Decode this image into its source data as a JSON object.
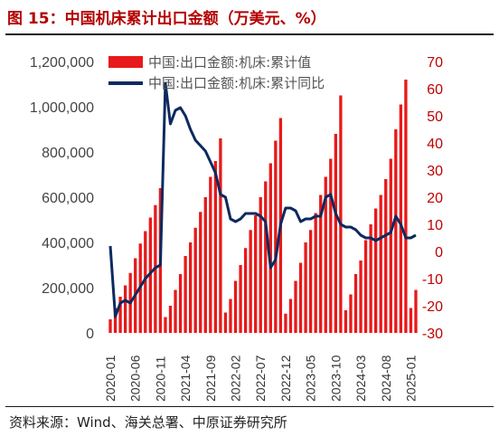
{
  "title": "图 15：中国机床累计出口金额（万美元、%）",
  "source": "资料来源：Wind、海关总署、中原证券研究所",
  "colors": {
    "bar": "#e8191a",
    "line": "#0d2a5e",
    "title": "#b40000",
    "right_axis": "#c00000"
  },
  "chart_data": {
    "type": "bar",
    "combo": "bar + line (dual axis)",
    "legend_position": "top-center",
    "grid": false,
    "left_axis": {
      "ylim": [
        0,
        1200000
      ],
      "ticks": [
        "0",
        "200,000",
        "400,000",
        "600,000",
        "800,000",
        "1,000,000",
        "1,200,000"
      ]
    },
    "right_axis": {
      "ylim": [
        -30,
        70
      ],
      "ticks": [
        "-30",
        "-20",
        "-10",
        "0",
        "10",
        "20",
        "30",
        "40",
        "50",
        "60",
        "70"
      ]
    },
    "x_tick_labels": [
      "2020-01",
      "2020-06",
      "2020-11",
      "2021-04",
      "2021-09",
      "2022-02",
      "2022-07",
      "2022-12",
      "2023-05",
      "2023-10",
      "2024-03",
      "2024-08",
      "2025-01"
    ],
    "categories": [
      "2020-01",
      "2020-02",
      "2020-03",
      "2020-04",
      "2020-05",
      "2020-06",
      "2020-07",
      "2020-08",
      "2020-09",
      "2020-10",
      "2020-11",
      "2020-12",
      "2021-01",
      "2021-02",
      "2021-03",
      "2021-04",
      "2021-05",
      "2021-06",
      "2021-07",
      "2021-08",
      "2021-09",
      "2021-10",
      "2021-11",
      "2021-12",
      "2022-01",
      "2022-02",
      "2022-03",
      "2022-04",
      "2022-05",
      "2022-06",
      "2022-07",
      "2022-08",
      "2022-09",
      "2022-10",
      "2022-11",
      "2022-12",
      "2023-01",
      "2023-02",
      "2023-03",
      "2023-04",
      "2023-05",
      "2023-06",
      "2023-07",
      "2023-08",
      "2023-09",
      "2023-10",
      "2023-11",
      "2023-12",
      "2024-01",
      "2024-02",
      "2024-03",
      "2024-04",
      "2024-05",
      "2024-06",
      "2024-07",
      "2024-08",
      "2024-09",
      "2024-10",
      "2024-11",
      "2024-12",
      "2025-01",
      "2025-02"
    ],
    "series": [
      {
        "name": "中国:出口金额:机床:累计值",
        "type": "bar",
        "axis": "left",
        "values": [
          60000,
          110000,
          160000,
          210000,
          265000,
          330000,
          395000,
          450000,
          510000,
          565000,
          640000,
          70000,
          120000,
          190000,
          260000,
          340000,
          400000,
          465000,
          535000,
          600000,
          690000,
          760000,
          860000,
          90000,
          150000,
          230000,
          300000,
          375000,
          455000,
          520000,
          600000,
          670000,
          750000,
          850000,
          950000,
          85000,
          150000,
          230000,
          310000,
          400000,
          455000,
          530000,
          610000,
          690000,
          770000,
          880000,
          1050000,
          100000,
          170000,
          260000,
          320000,
          410000,
          480000,
          550000,
          610000,
          680000,
          770000,
          900000,
          1010000,
          1120000,
          110000,
          190000
        ]
      },
      {
        "name": "中国:出口金额:机床:累计同比",
        "type": "line",
        "axis": "right",
        "values": [
          2,
          -24,
          -19,
          -18,
          -19,
          -16,
          -13,
          -10,
          -8,
          -6,
          -5,
          62,
          47,
          52,
          53,
          50,
          45,
          41,
          39,
          37,
          33,
          29,
          21,
          20,
          12,
          11,
          12,
          14,
          14,
          14,
          13,
          11,
          -6,
          -3,
          10,
          16,
          16,
          15,
          11,
          12,
          12,
          13,
          13,
          20,
          21,
          14,
          10,
          9,
          9,
          8,
          6,
          5,
          5,
          4,
          5,
          6,
          7,
          13,
          10,
          5,
          5,
          6
        ]
      }
    ]
  }
}
